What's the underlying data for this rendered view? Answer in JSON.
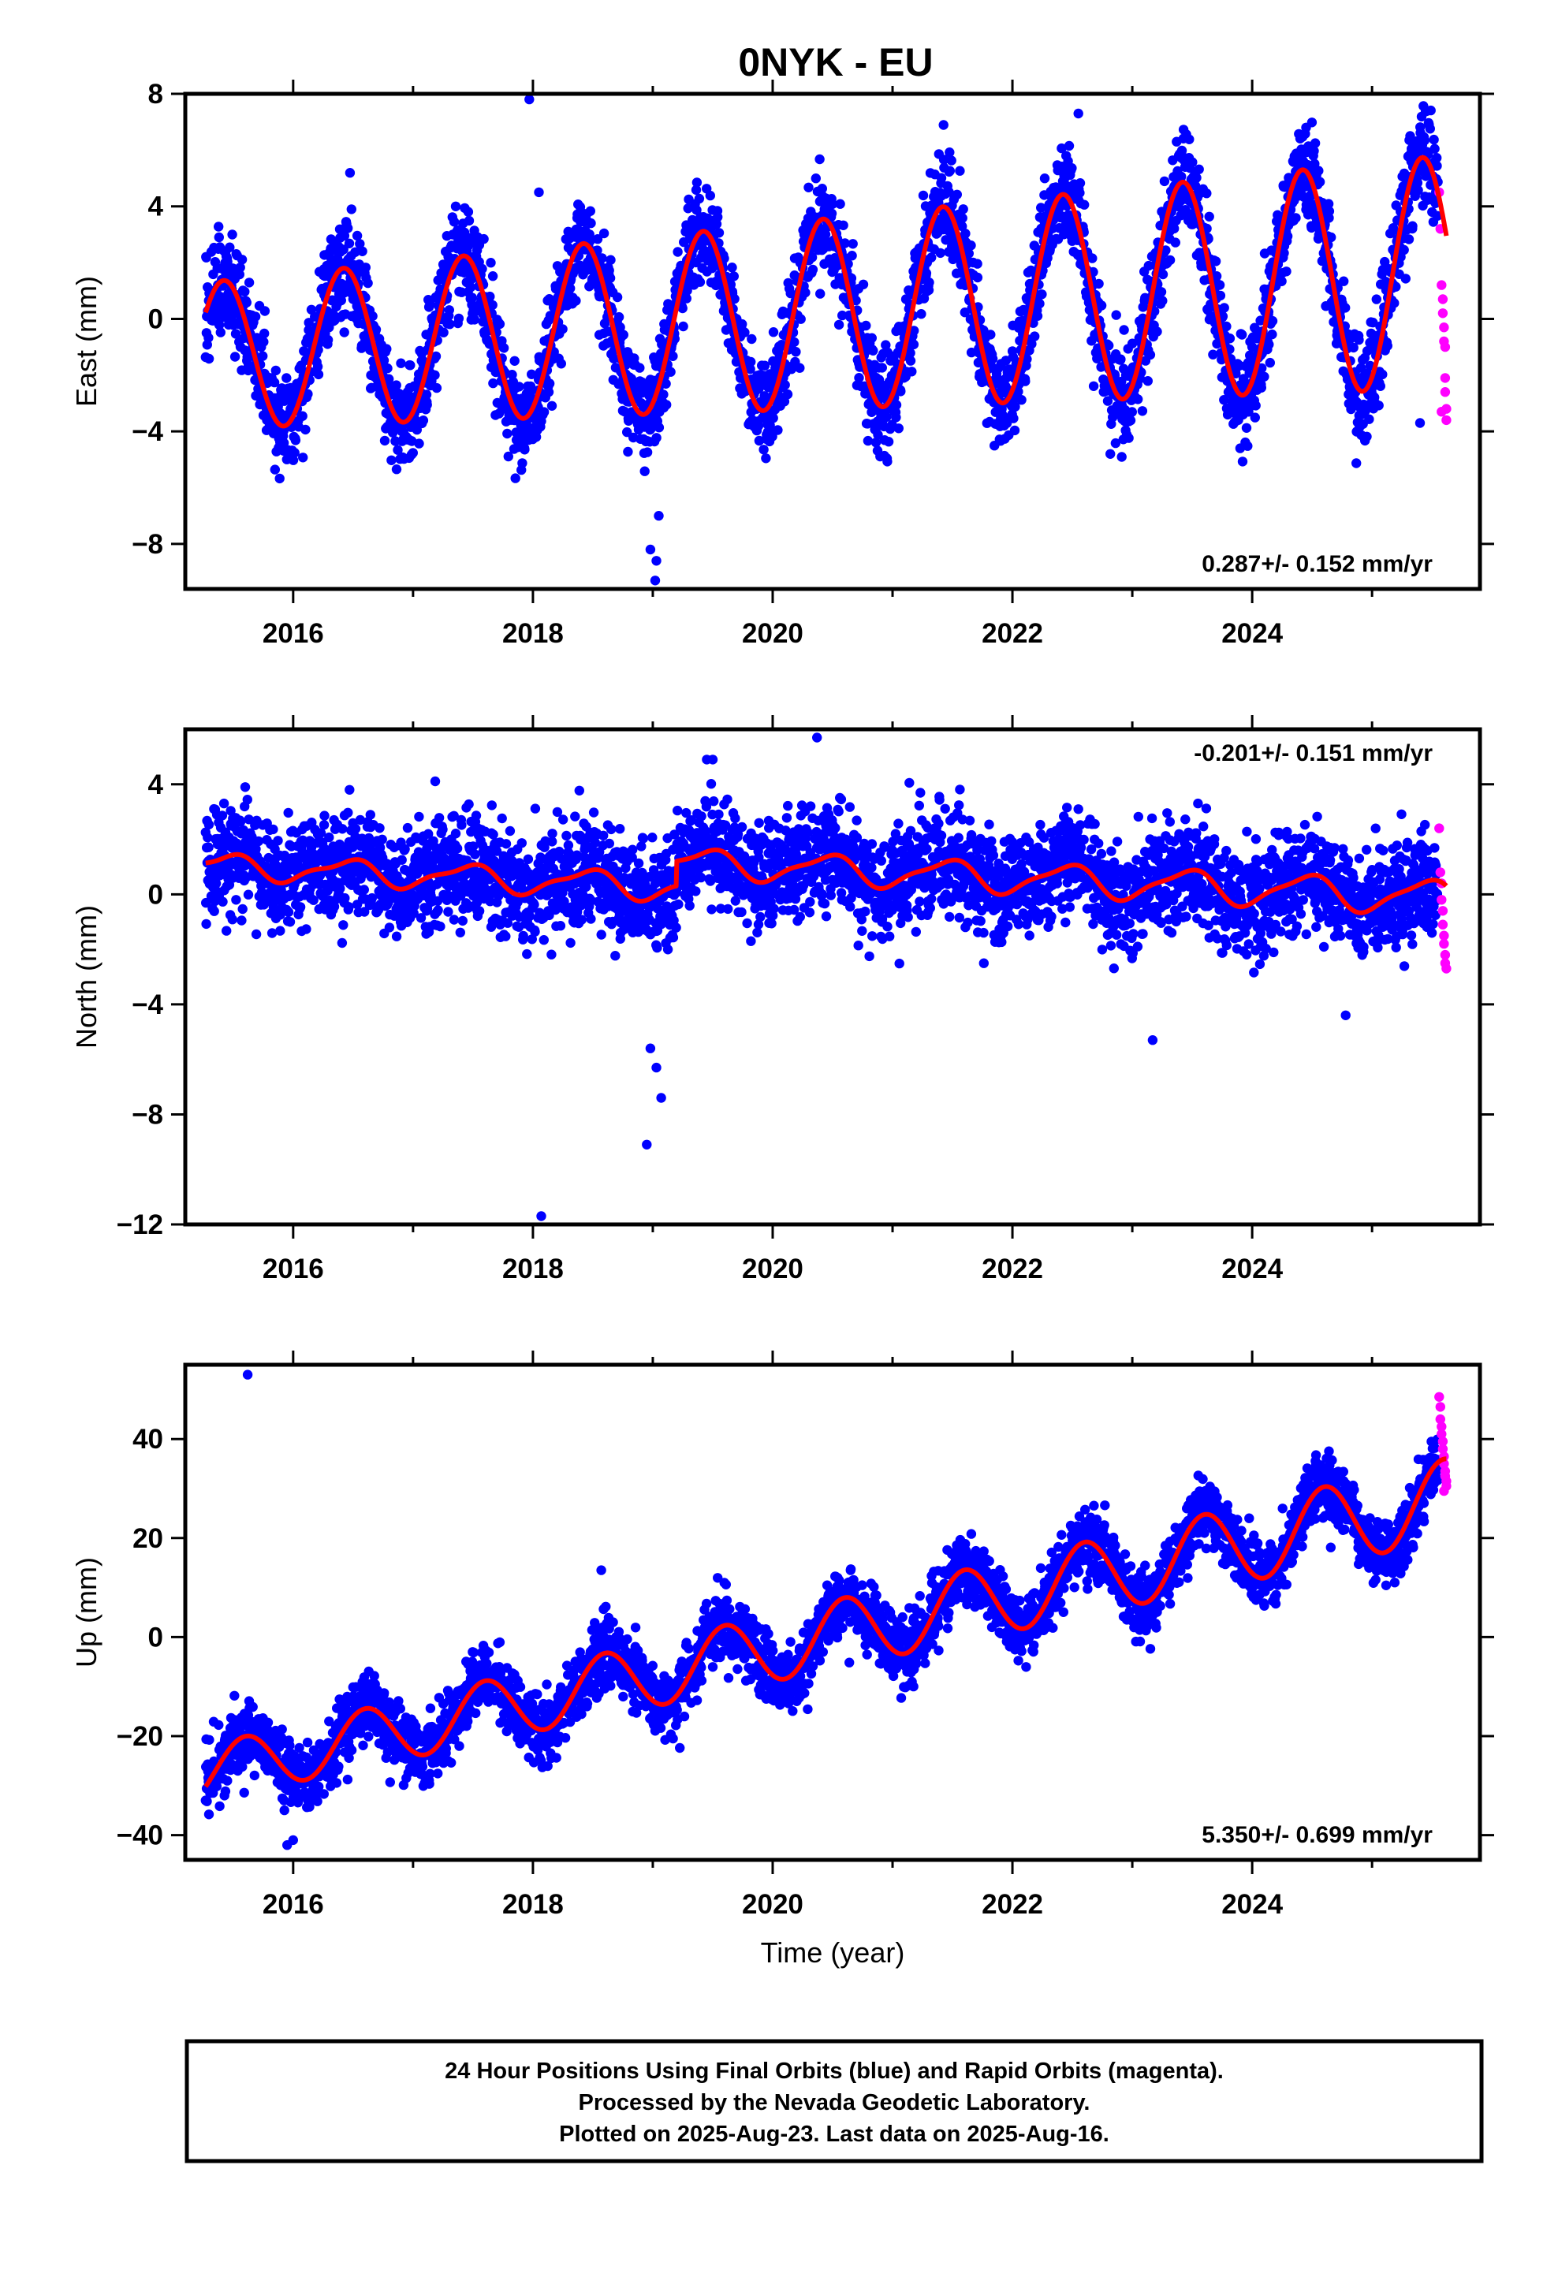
{
  "title": "0NYK - EU",
  "footer": {
    "lines": [
      "24 Hour Positions Using Final Orbits (blue) and Rapid Orbits (magenta).",
      "Processed by the Nevada Geodetic Laboratory.",
      "Plotted on 2025-Aug-23. Last data on 2025-Aug-16."
    ]
  },
  "colors": {
    "final": "#0000ff",
    "rapid": "#ff00ff",
    "model": "#ff0000",
    "axis": "#000000"
  },
  "chart_data": [
    {
      "type": "scatter",
      "component": "East",
      "ylabel": "East (mm)",
      "xlabel": "",
      "xlim": [
        2015.1,
        2025.9
      ],
      "ylim": [
        -9.6,
        8
      ],
      "xticks": [
        2016,
        2018,
        2020,
        2022,
        2024
      ],
      "yticks": [
        -8,
        -4,
        0,
        4,
        8
      ],
      "x_start": 2015.27,
      "x_final_end": 2025.55,
      "x_rapid_start": 2025.56,
      "x_end": 2025.62,
      "rate_label": "0.287+/- 0.152 mm/yr",
      "rate_position": "bottom-right",
      "model": {
        "offset": -1.3,
        "rate": 0.287,
        "annual_amplitude": 2.6,
        "annual_amplitude_growth": 0.15,
        "annual_phase_peak": 0.42,
        "semiannual_amplitude": 0.0,
        "semiannual_peak": 0.0,
        "offsets": []
      },
      "scatter_sd": 0.9,
      "outliers": [
        [
          2017.97,
          7.8
        ],
        [
          2018.05,
          4.5
        ],
        [
          2019.02,
          -9.3
        ],
        [
          2019.03,
          -8.6
        ],
        [
          2018.98,
          -8.2
        ],
        [
          2019.05,
          -7.0
        ],
        [
          2022.55,
          7.3
        ],
        [
          2024.45,
          6.8
        ],
        [
          2023.37,
          6.3
        ],
        [
          2025.4,
          -3.7
        ],
        [
          2023.9,
          -4.6
        ]
      ],
      "rapid_points": [
        [
          2025.56,
          4.5
        ],
        [
          2025.57,
          3.2
        ],
        [
          2025.58,
          1.2
        ],
        [
          2025.59,
          0.7
        ],
        [
          2025.59,
          0.2
        ],
        [
          2025.6,
          -0.3
        ],
        [
          2025.6,
          -0.8
        ],
        [
          2025.61,
          -1.0
        ],
        [
          2025.61,
          -2.1
        ],
        [
          2025.61,
          -2.6
        ],
        [
          2025.62,
          -3.2
        ],
        [
          2025.62,
          -3.6
        ],
        [
          2025.58,
          -3.3
        ]
      ]
    },
    {
      "type": "scatter",
      "component": "North",
      "ylabel": "North (mm)",
      "xlabel": "",
      "xlim": [
        2015.1,
        2025.9
      ],
      "ylim": [
        -12,
        6
      ],
      "xticks": [
        2016,
        2018,
        2020,
        2022,
        2024
      ],
      "yticks": [
        -12,
        -8,
        -4,
        0,
        4
      ],
      "x_start": 2015.27,
      "x_final_end": 2025.55,
      "x_rapid_start": 2025.56,
      "x_end": 2025.62,
      "rate_label": "-0.201+/- 0.151 mm/yr",
      "rate_position": "top-right",
      "model": {
        "offset": 1.05,
        "rate": -0.201,
        "annual_amplitude": 0.4,
        "annual_amplitude_growth": 0.02,
        "annual_phase_peak": 0.45,
        "semiannual_amplitude": 0.15,
        "semiannual_peak": 0.1,
        "offsets": [
          [
            2019.2,
            0.9
          ]
        ]
      },
      "scatter_sd": 0.95,
      "outliers": [
        [
          2018.07,
          -11.7
        ],
        [
          2018.95,
          -9.1
        ],
        [
          2019.07,
          -7.4
        ],
        [
          2018.98,
          -5.6
        ],
        [
          2019.03,
          -6.3
        ],
        [
          2023.17,
          -5.3
        ],
        [
          2020.37,
          5.7
        ],
        [
          2019.45,
          4.9
        ],
        [
          2019.5,
          4.9
        ],
        [
          2015.6,
          3.9
        ],
        [
          2016.47,
          3.8
        ],
        [
          2024.78,
          -4.4
        ]
      ],
      "rapid_points": [
        [
          2025.56,
          2.4
        ],
        [
          2025.57,
          0.8
        ],
        [
          2025.58,
          0.4
        ],
        [
          2025.58,
          -0.2
        ],
        [
          2025.59,
          -0.6
        ],
        [
          2025.59,
          -1.1
        ],
        [
          2025.6,
          -1.5
        ],
        [
          2025.6,
          -1.8
        ],
        [
          2025.61,
          -2.2
        ],
        [
          2025.61,
          -2.5
        ],
        [
          2025.62,
          -2.7
        ]
      ]
    },
    {
      "type": "scatter",
      "component": "Up",
      "ylabel": "Up (mm)",
      "xlabel": "Time (year)",
      "xlim": [
        2015.1,
        2025.9
      ],
      "ylim": [
        -45,
        55
      ],
      "xticks": [
        2016,
        2018,
        2020,
        2022,
        2024
      ],
      "yticks": [
        -40,
        -20,
        0,
        20,
        40
      ],
      "x_start": 2015.27,
      "x_final_end": 2025.55,
      "x_rapid_start": 2025.56,
      "x_end": 2025.62,
      "rate_label": "5.350+/- 0.699 mm/yr",
      "rate_position": "bottom-right",
      "model": {
        "offset": -27.5,
        "rate": 5.35,
        "annual_amplitude": 5.6,
        "annual_amplitude_growth": 0.25,
        "annual_phase_peak": 0.6,
        "semiannual_amplitude": 0.0,
        "semiannual_peak": 0.0,
        "offsets": []
      },
      "scatter_sd": 3.4,
      "outliers": [
        [
          2015.62,
          53.0
        ],
        [
          2018.57,
          13.5
        ],
        [
          2015.95,
          -42.0
        ],
        [
          2016.0,
          -41.0
        ]
      ],
      "rapid_points": [
        [
          2025.56,
          48.5
        ],
        [
          2025.57,
          46.5
        ],
        [
          2025.57,
          44.0
        ],
        [
          2025.58,
          42.5
        ],
        [
          2025.58,
          41.0
        ],
        [
          2025.59,
          39.5
        ],
        [
          2025.59,
          38.0
        ],
        [
          2025.6,
          36.5
        ],
        [
          2025.6,
          35.0
        ],
        [
          2025.61,
          33.5
        ],
        [
          2025.61,
          32.5
        ],
        [
          2025.62,
          31.5
        ],
        [
          2025.62,
          30.5
        ],
        [
          2025.6,
          29.5
        ]
      ]
    }
  ]
}
